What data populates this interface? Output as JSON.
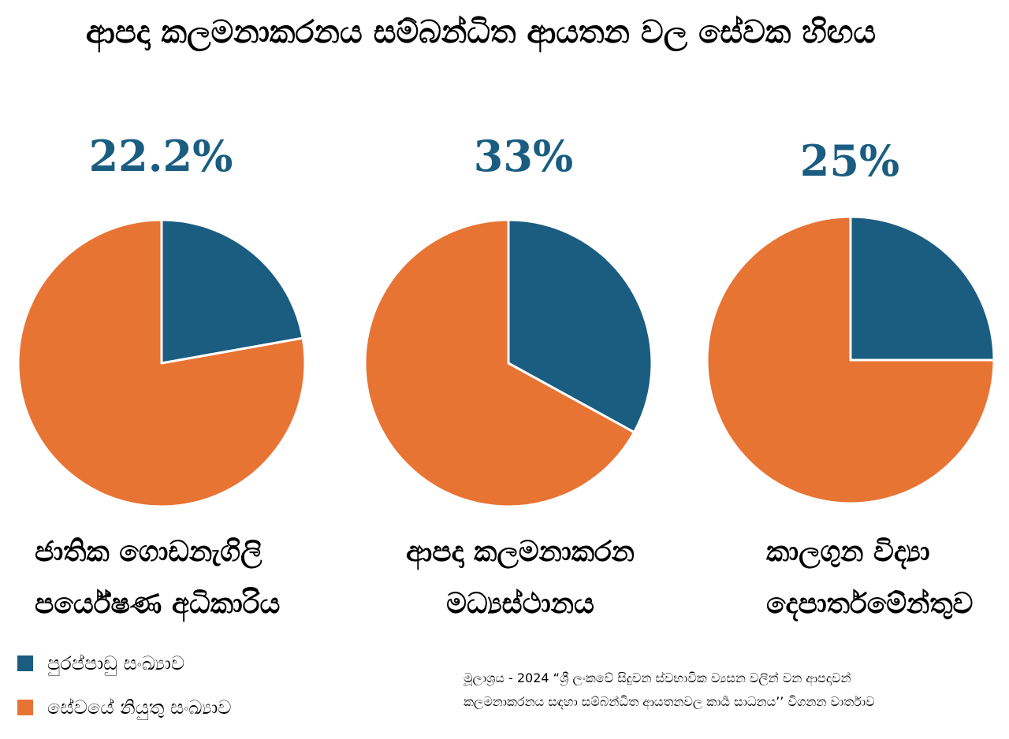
{
  "chart_data": {
    "type": "pie",
    "title": "ආපදා කලමනාකරනය සම්බන්ධිත ආයතන වල සේවක හිඟය",
    "legend": [
      {
        "name": "පුරප්පාඩු සංඛ්‍යාව",
        "color": "#1a5d80"
      },
      {
        "name": "සේවයේ නියුතු සංඛ්‍යාව",
        "color": "#e87434"
      }
    ],
    "charts": [
      {
        "label": "22.2%",
        "name_lines": [
          "ජාතික ගොඩනැගිලි",
          "පර්යේෂණ අධිකාරිය"
        ],
        "values": [
          22.2,
          77.8
        ]
      },
      {
        "label": "33%",
        "name_lines": [
          "ආපදා කලමනාකරන",
          "මධ්‍යස්ථානය"
        ],
        "values": [
          33,
          67
        ]
      },
      {
        "label": "25%",
        "name_lines": [
          "කාලගුන විද්‍යා",
          "දෙපාර්තමේන්තුව"
        ],
        "values": [
          25,
          75
        ]
      }
    ],
    "source": [
      "මූලාශ්‍රය - 2024 “ශ්‍රී ලංකවේ සිදුවන ස්වභාවික ව්‍යසන වලින් වන ආපදාවන්",
      "කලමනාකරනය සඳහා සම්බන්ධිත ආයතනවල කාර්‍ය සාධනය’’ විගනන වාර්තාව"
    ]
  }
}
